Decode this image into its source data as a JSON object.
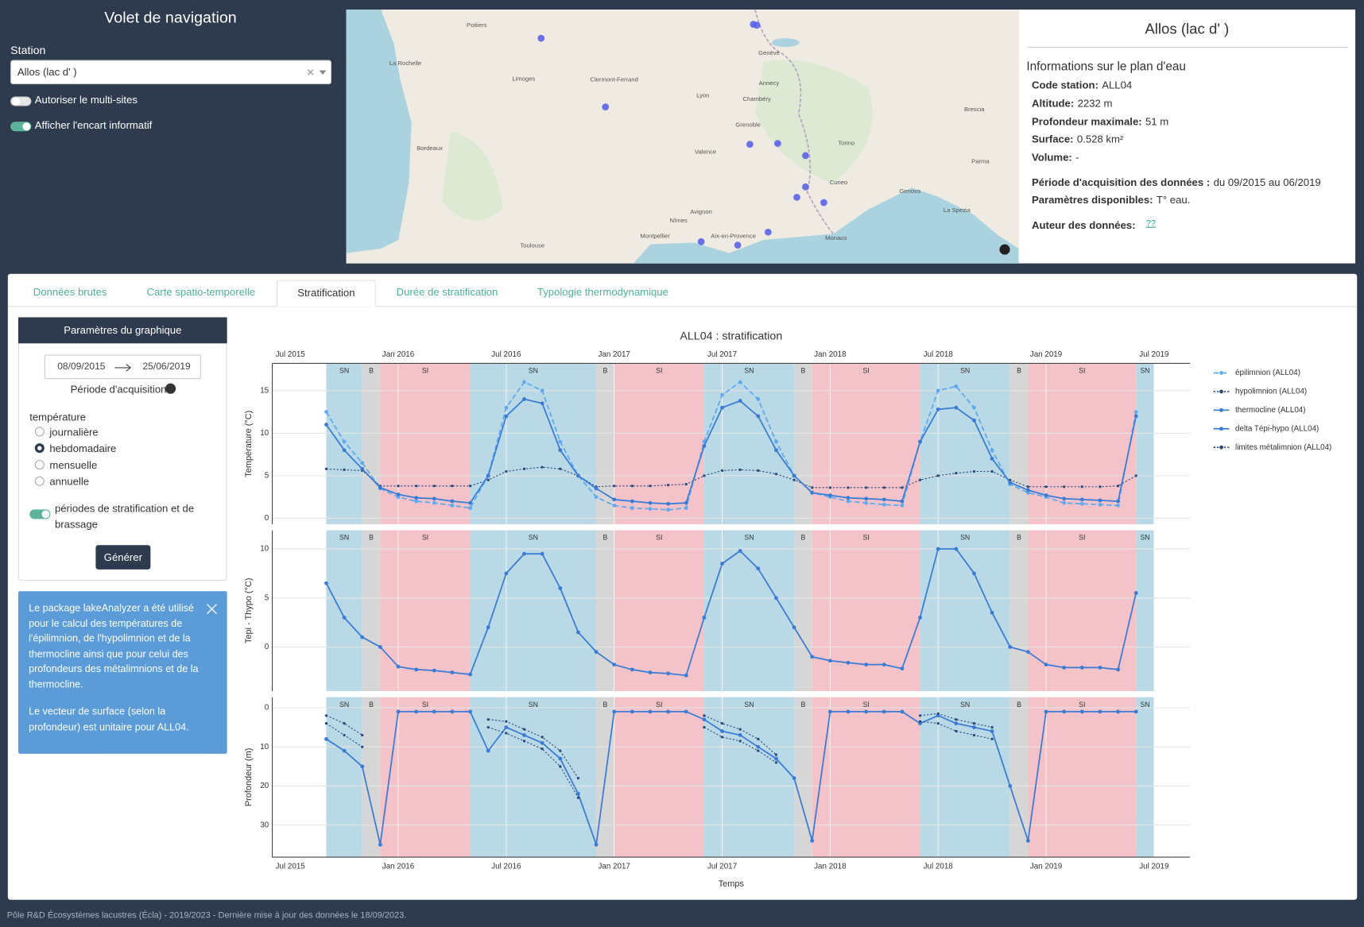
{
  "sidebar": {
    "title": "Volet de navigation",
    "station_label": "Station",
    "station_value": "Allos (lac d' )",
    "toggles": [
      {
        "label": "Autoriser le multi-sites",
        "on": false
      },
      {
        "label": "Afficher l'encart informatif",
        "on": true
      }
    ]
  },
  "map": {
    "labels": [
      "Poitiers",
      "La Rochelle",
      "Limoges",
      "Clermont-Ferrand",
      "Lyon",
      "Genève",
      "Annecy",
      "Chambéry",
      "Grenoble",
      "Valence",
      "Bordeaux",
      "Avignon",
      "Nîmes",
      "Montpellier",
      "Toulouse",
      "Aix-en-Provence",
      "Monaco",
      "Torino",
      "Cuneo",
      "Genova",
      "Brescia",
      "Parma",
      "La Spezia"
    ]
  },
  "info": {
    "title": "Allos (lac d' )",
    "heading": "Informations sur le plan d'eau",
    "rows": [
      {
        "label": "Code station:",
        "value": "ALL04"
      },
      {
        "label": "Altitude:",
        "value": "2232 m"
      },
      {
        "label": "Profondeur maximale:",
        "value": "51 m"
      },
      {
        "label": "Surface:",
        "value": "0.528 km²"
      },
      {
        "label": "Volume:",
        "value": "-"
      },
      {
        "label": "Période d'acquisition des données :",
        "value": "du 09/2015 au 06/2019"
      },
      {
        "label": "Paramètres disponibles:",
        "value": "T° eau."
      },
      {
        "label": "Auteur des données:",
        "value": "??"
      }
    ]
  },
  "tabs": {
    "items": [
      "Données brutes",
      "Carte spatio-temporelle",
      "Stratification",
      "Durée de stratification",
      "Typologie thermodynamique"
    ],
    "active": 2
  },
  "params": {
    "title": "Paramètres du graphique",
    "date_start": "08/09/2015",
    "date_end": "25/06/2019",
    "period_label": "Période d'acquisition",
    "variable_label": "température",
    "options": [
      "journalière",
      "hebdomadaire",
      "mensuelle",
      "annuelle"
    ],
    "selected": 1,
    "toggle_label": "périodes de stratification et de brassage",
    "toggle_on": true,
    "button": "Générer"
  },
  "notice": {
    "paragraphs": [
      "Le package lakeAnalyzer a été utilisé pour le calcul des températures de l'épilimnion, de l'hypolimnion et de la thermocline ainsi que pour celui des profondeurs des métalimnions et de la thermocline.",
      "Le vecteur de surface (selon la profondeur) est unitaire pour ALL04."
    ]
  },
  "footer": "Pôle R&D Écosystèmes lacustres (Écla) - 2019/2023 - Dernière mise à jour des données le 18/09/2023.",
  "chart_data": {
    "type": "line",
    "title": "ALL04 : stratification",
    "x_label": "Temps",
    "legend_position": "right",
    "grid": true,
    "xlim": [
      "2015-06",
      "2019-09"
    ],
    "xticks": [
      {
        "value": "2015-07",
        "label": "Jul 2015"
      },
      {
        "value": "2016-01",
        "label": "Jan 2016"
      },
      {
        "value": "2016-07",
        "label": "Jul 2016"
      },
      {
        "value": "2017-01",
        "label": "Jan 2017"
      },
      {
        "value": "2017-07",
        "label": "Jul 2017"
      },
      {
        "value": "2018-01",
        "label": "Jan 2018"
      },
      {
        "value": "2018-07",
        "label": "Jul 2018"
      },
      {
        "value": "2019-01",
        "label": "Jan 2019"
      },
      {
        "value": "2019-07",
        "label": "Jul 2019"
      }
    ],
    "x": [
      "2015-09",
      "2015-10",
      "2015-11",
      "2015-12",
      "2016-01",
      "2016-02",
      "2016-03",
      "2016-04",
      "2016-05",
      "2016-06",
      "2016-07",
      "2016-08",
      "2016-09",
      "2016-10",
      "2016-11",
      "2016-12",
      "2017-01",
      "2017-02",
      "2017-03",
      "2017-04",
      "2017-05",
      "2017-06",
      "2017-07",
      "2017-08",
      "2017-09",
      "2017-10",
      "2017-11",
      "2017-12",
      "2018-01",
      "2018-02",
      "2018-03",
      "2018-04",
      "2018-05",
      "2018-06",
      "2018-07",
      "2018-08",
      "2018-09",
      "2018-10",
      "2018-11",
      "2018-12",
      "2019-01",
      "2019-02",
      "2019-03",
      "2019-04",
      "2019-05",
      "2019-06"
    ],
    "periods": [
      {
        "label": "SN",
        "start": "2015-09",
        "end": "2015-11",
        "color": "#b9d9e6"
      },
      {
        "label": "B",
        "start": "2015-11",
        "end": "2015-12",
        "color": "#d6d6d6"
      },
      {
        "label": "SI",
        "start": "2015-12",
        "end": "2016-05",
        "color": "#f3c3c9"
      },
      {
        "label": "SN",
        "start": "2016-05",
        "end": "2016-12",
        "color": "#b9d9e6"
      },
      {
        "label": "B",
        "start": "2016-12",
        "end": "2017-01",
        "color": "#d6d6d6"
      },
      {
        "label": "SI",
        "start": "2017-01",
        "end": "2017-06",
        "color": "#f3c3c9"
      },
      {
        "label": "SN",
        "start": "2017-06",
        "end": "2017-11",
        "color": "#b9d9e6"
      },
      {
        "label": "B",
        "start": "2017-11",
        "end": "2017-12",
        "color": "#d6d6d6"
      },
      {
        "label": "SI",
        "start": "2017-12",
        "end": "2018-06",
        "color": "#f3c3c9"
      },
      {
        "label": "SN",
        "start": "2018-06",
        "end": "2018-11",
        "color": "#b9d9e6"
      },
      {
        "label": "B",
        "start": "2018-11",
        "end": "2018-12",
        "color": "#d6d6d6"
      },
      {
        "label": "SI",
        "start": "2018-12",
        "end": "2019-06",
        "color": "#f3c3c9"
      },
      {
        "label": "SN",
        "start": "2019-06",
        "end": "2019-07",
        "color": "#b9d9e6"
      }
    ],
    "subplots": [
      {
        "y_label": "Température (°C)",
        "ylim": [
          -0.7,
          18.2
        ],
        "yticks": [
          0,
          5,
          10,
          15
        ],
        "series": [
          {
            "name": "épilimnion (ALL04)",
            "color": "#5fa9ef",
            "dash": "dash",
            "values": [
              12.5,
              9,
              6.5,
              3.5,
              2.5,
              2,
              1.8,
              1.5,
              1.2,
              5,
              13,
              16,
              15,
              9,
              5,
              2.5,
              1.5,
              1.2,
              1.1,
              1,
              1.2,
              9,
              14.5,
              16,
              14,
              9,
              5,
              3,
              2.5,
              2,
              1.8,
              1.6,
              1.5,
              9,
              15,
              15.5,
              13,
              8,
              4,
              3,
              2.5,
              1.8,
              1.7,
              1.6,
              1.5,
              12.5
            ]
          },
          {
            "name": "hypolimnion (ALL04)",
            "color": "#2a4b7c",
            "dash": "dot",
            "values": [
              5.8,
              5.7,
              5.6,
              3.8,
              3.8,
              3.8,
              3.8,
              3.8,
              3.8,
              4.5,
              5.5,
              5.8,
              6,
              5.8,
              5,
              3.7,
              3.8,
              3.8,
              3.8,
              3.9,
              4,
              5,
              5.6,
              5.7,
              5.6,
              5.2,
              4.5,
              3.6,
              3.6,
              3.6,
              3.6,
              3.6,
              3.6,
              4.5,
              5,
              5.3,
              5.5,
              5.5,
              4.5,
              3.7,
              3.7,
              3.7,
              3.7,
              3.7,
              3.8,
              5
            ]
          },
          {
            "name": "thermocline (ALL04)",
            "color": "#3a7bd5",
            "dash": "solid",
            "values": [
              11,
              8,
              5.8,
              3.6,
              2.8,
              2.4,
              2.3,
              2,
              1.8,
              5,
              12,
              14,
              13.5,
              8,
              5,
              3.5,
              2.2,
              2,
              1.8,
              1.7,
              1.8,
              8.5,
              13,
              13.8,
              12,
              8,
              5,
              3,
              2.7,
              2.4,
              2.3,
              2.2,
              2,
              9,
              12.8,
              13,
              11.5,
              7,
              4.2,
              3.3,
              2.7,
              2.3,
              2.2,
              2.1,
              2,
              12
            ]
          }
        ]
      },
      {
        "y_label": "Tepi - Thypo (°C)",
        "ylim": [
          -4.5,
          11.9
        ],
        "yticks": [
          0,
          5,
          10
        ],
        "series": [
          {
            "name": "delta Tépi-hypo (ALL04)",
            "color": "#3a7bd5",
            "dash": "solid",
            "values": [
              6.5,
              3,
              1,
              0,
              -2,
              -2.3,
              -2.4,
              -2.6,
              -2.8,
              2,
              7.5,
              9.5,
              9.5,
              6,
              1.5,
              -0.5,
              -1.8,
              -2.3,
              -2.6,
              -2.7,
              -2.9,
              3,
              8.5,
              9.8,
              8,
              5,
              2,
              -1,
              -1.4,
              -1.6,
              -1.8,
              -1.8,
              -2.2,
              3,
              10,
              10,
              7.5,
              3.5,
              0,
              -0.5,
              -1.8,
              -2.1,
              -2.1,
              -2.1,
              -2.3,
              5.5
            ]
          }
        ]
      },
      {
        "y_label": "Profondeur (m)",
        "ylim": [
          38.2,
          -2.7
        ],
        "yticks": [
          0,
          10,
          20,
          30
        ],
        "series": [
          {
            "color": "#3a7bd5",
            "dash": "solid",
            "values": [
              8,
              11,
              15,
              35,
              1,
              1,
              1,
              1,
              1,
              11,
              5,
              7,
              9,
              13,
              22,
              35,
              1,
              1,
              1,
              1,
              1,
              3,
              6,
              7,
              10,
              13,
              18,
              34,
              1,
              1,
              1,
              1,
              1,
              4,
              2,
              4,
              5,
              6,
              20,
              34,
              1,
              1,
              1,
              1,
              1,
              1
            ]
          },
          {
            "name": "limites métalimnion (ALL04)",
            "color": "#2a4b7c",
            "dash": "dot",
            "values": [
              2,
              4,
              7,
              null,
              null,
              null,
              null,
              null,
              null,
              3,
              3.5,
              5.5,
              7.5,
              11,
              18,
              null,
              null,
              null,
              null,
              null,
              null,
              2,
              4,
              5.5,
              8,
              12,
              null,
              null,
              null,
              null,
              null,
              null,
              null,
              2,
              1.5,
              3,
              4,
              5,
              null,
              null,
              null,
              null,
              null,
              null,
              null,
              null
            ],
            "values2": [
              4,
              7,
              10,
              null,
              null,
              null,
              null,
              null,
              null,
              5,
              6.5,
              8.5,
              10.5,
              15,
              23,
              null,
              null,
              null,
              null,
              null,
              null,
              5,
              7.5,
              8.5,
              11,
              14,
              null,
              null,
              null,
              null,
              null,
              null,
              null,
              3.5,
              4,
              6,
              7,
              8,
              null,
              null,
              null,
              null,
              null,
              null,
              null,
              null
            ]
          }
        ]
      }
    ]
  }
}
